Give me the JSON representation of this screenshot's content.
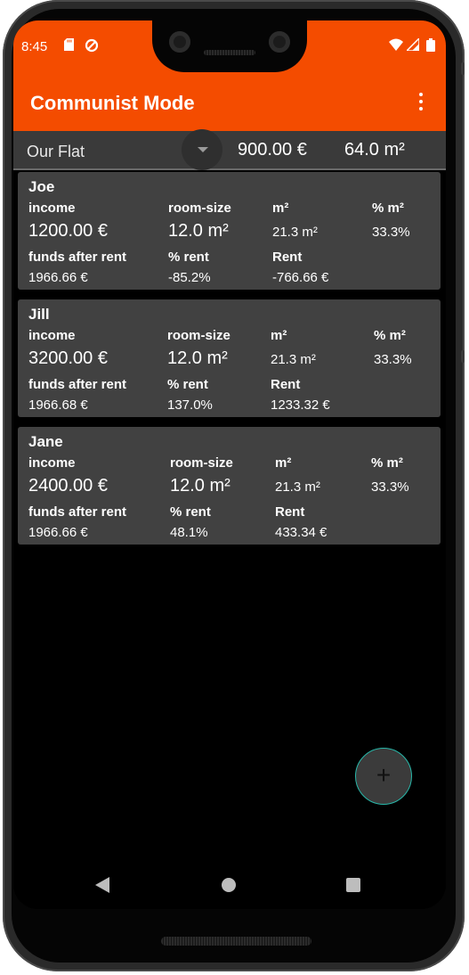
{
  "status_bar": {
    "time": "8:45",
    "icons": [
      "sd-card-icon",
      "sync-icon",
      "wifi-icon",
      "signal-icon",
      "battery-icon"
    ]
  },
  "app_bar": {
    "title": "Communist Mode",
    "menu_icon": "more-vert-icon"
  },
  "flat": {
    "name": "Our Flat",
    "rent": "900.00 €",
    "area": "64.0 m²"
  },
  "labels": {
    "income": "income",
    "room_size": "room-size",
    "m2": "m²",
    "pct_m2": "% m²",
    "funds_after_rent": "funds after rent",
    "pct_rent": "% rent",
    "rent": "Rent"
  },
  "people": [
    {
      "name": "Joe",
      "income": "1200.00 €",
      "room_size": "12.0 m²",
      "m2": "21.3 m²",
      "pct_m2": "33.3%",
      "funds_after_rent": "1966.66 €",
      "pct_rent": "-85.2%",
      "rent": "-766.66 €"
    },
    {
      "name": "Jill",
      "income": "3200.00 €",
      "room_size": "12.0 m²",
      "m2": "21.3 m²",
      "pct_m2": "33.3%",
      "funds_after_rent": "1966.68 €",
      "pct_rent": "137.0%",
      "rent": "1233.32 €"
    },
    {
      "name": "Jane",
      "income": "2400.00 €",
      "room_size": "12.0 m²",
      "m2": "21.3 m²",
      "pct_m2": "33.3%",
      "funds_after_rent": "1966.66 €",
      "pct_rent": "48.1%",
      "rent": "433.34 €"
    }
  ],
  "fab": {
    "label": "+"
  },
  "colors": {
    "primary": "#f44c00",
    "card": "#414141",
    "fab_border": "#28b7a9"
  }
}
